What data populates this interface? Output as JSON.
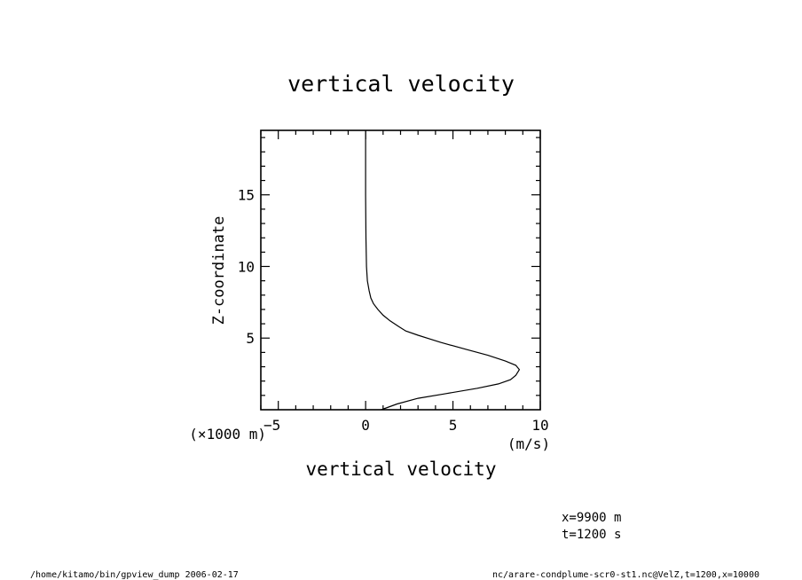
{
  "chart_data": {
    "type": "line",
    "title": "vertical velocity",
    "xlabel": "vertical velocity",
    "x_unit": "(m/s)",
    "ylabel": "Z-coordinate",
    "y_unit": "(×1000 m)",
    "xlim": [
      -6,
      10
    ],
    "ylim": [
      0,
      19.5
    ],
    "x_ticks": [
      -5,
      0,
      5,
      10
    ],
    "x_tick_labels": [
      "−5",
      "0",
      "5",
      "10"
    ],
    "y_ticks": [
      5,
      10,
      15
    ],
    "y_tick_labels": [
      "5",
      "10",
      "15"
    ],
    "grid": false,
    "series": [
      {
        "x": [
          0.9,
          1.8,
          3.0,
          4.5,
          6.4,
          7.6,
          8.3,
          8.6,
          8.8,
          8.6,
          8.0,
          7.0,
          5.8,
          4.3,
          3.0,
          2.3,
          1.9,
          1.4,
          1.0,
          0.7,
          0.45,
          0.3,
          0.2,
          0.1,
          0.05,
          0.02,
          0.0,
          0.0
        ],
        "y": [
          0.0,
          0.4,
          0.8,
          1.1,
          1.5,
          1.8,
          2.1,
          2.4,
          2.8,
          3.1,
          3.4,
          3.8,
          4.2,
          4.7,
          5.2,
          5.5,
          5.8,
          6.2,
          6.6,
          7.0,
          7.4,
          7.8,
          8.3,
          9.0,
          10.0,
          12.0,
          15.0,
          19.5
        ]
      }
    ]
  },
  "info": {
    "line1": "x=9900  m",
    "line2": "t=1200  s"
  },
  "footer": {
    "left": "/home/kitamo/bin/gpview_dump  2006-02-17",
    "right": "nc/arare-condplume-scr0-st1.nc@VelZ,t=1200,x=10000"
  }
}
